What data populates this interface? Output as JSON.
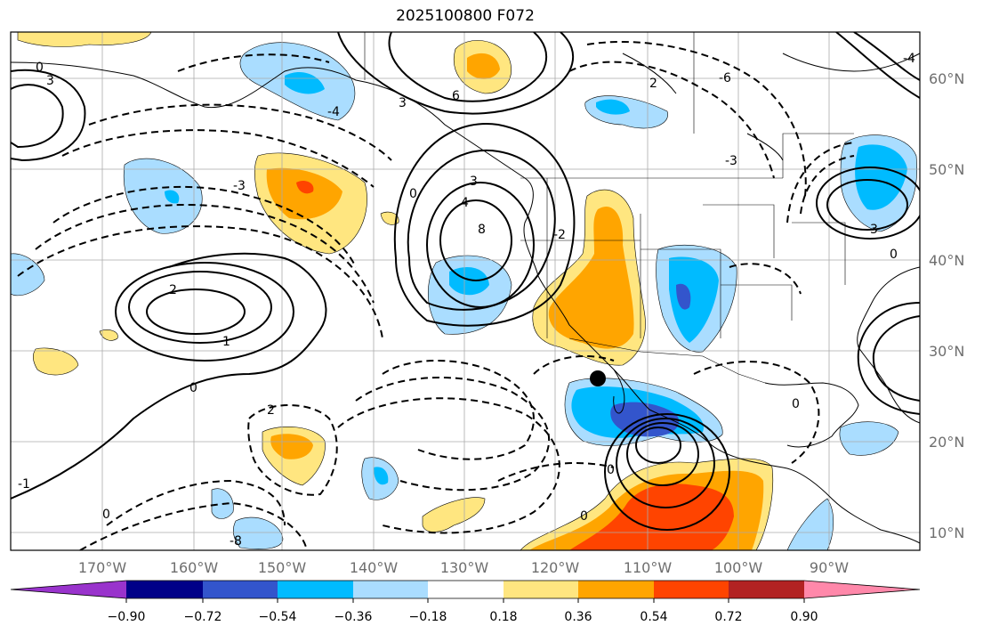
{
  "title": "2025100800 F072",
  "lon_ticks": [
    "170°W",
    "160°W",
    "150°W",
    "140°W",
    "130°W",
    "120°W",
    "110°W",
    "100°W",
    "90°W"
  ],
  "lat_ticks": [
    "60°N",
    "50°N",
    "40°N",
    "30°N",
    "20°N",
    "10°N"
  ],
  "colorbar": {
    "labels": [
      "−0.90",
      "−0.72",
      "−0.54",
      "−0.36",
      "−0.18",
      "0.18",
      "0.36",
      "0.54",
      "0.72",
      "0.90"
    ],
    "colors": [
      "#9933cc",
      "#000088",
      "#3355cc",
      "#00bbff",
      "#aaddff",
      "#ffffff",
      "#ffe680",
      "#ffa500",
      "#ff4400",
      "#b22222",
      "#ff88aa"
    ]
  },
  "contour_labels": [
    "0",
    "3",
    "-3",
    "6",
    "-6",
    "2",
    "-2",
    "1",
    "-1",
    "4",
    "-4",
    "8",
    "-8"
  ],
  "marker": "filled-circle"
}
